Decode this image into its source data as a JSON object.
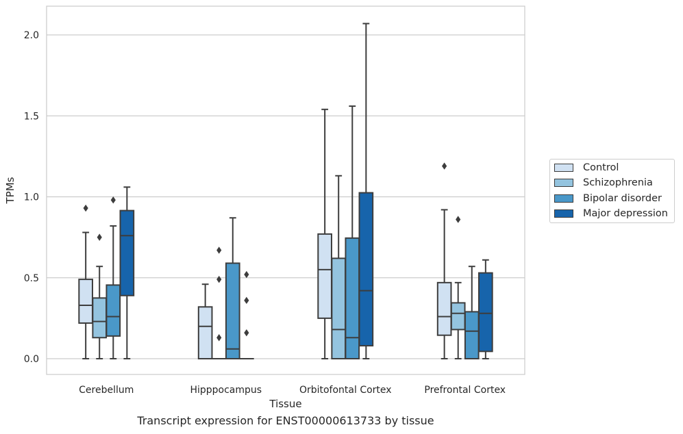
{
  "chart_data": {
    "type": "box",
    "title": "Transcript expression for ENST00000613733 by tissue",
    "xlabel": "Tissue",
    "ylabel": "TPMs",
    "ylim": [
      -0.1,
      2.18
    ],
    "yticks": [
      0.0,
      0.5,
      1.0,
      1.5,
      2.0
    ],
    "ytick_labels": [
      "0.0",
      "0.5",
      "1.0",
      "1.5",
      "2.0"
    ],
    "grid": "horizontal",
    "legend_placement": "right",
    "categories": [
      "Cerebellum",
      "Hipppocampus",
      "Orbitofontal Cortex",
      "Prefrontal Cortex"
    ],
    "series": [
      {
        "name": "Control",
        "color": "#d0e1f2",
        "boxes": [
          {
            "whislo": 0.0,
            "q1": 0.22,
            "med": 0.33,
            "q3": 0.49,
            "whishi": 0.78,
            "fliers": [
              0.93
            ]
          },
          {
            "whislo": 0.0,
            "q1": 0.0,
            "med": 0.2,
            "q3": 0.32,
            "whishi": 0.46,
            "fliers": []
          },
          {
            "whislo": 0.0,
            "q1": 0.25,
            "med": 0.55,
            "q3": 0.77,
            "whishi": 1.54,
            "fliers": []
          },
          {
            "whislo": 0.0,
            "q1": 0.145,
            "med": 0.26,
            "q3": 0.47,
            "whishi": 0.92,
            "fliers": [
              1.19
            ]
          }
        ]
      },
      {
        "name": "Schizophrenia",
        "color": "#94c4df",
        "boxes": [
          {
            "whislo": 0.0,
            "q1": 0.13,
            "med": 0.23,
            "q3": 0.375,
            "whishi": 0.57,
            "fliers": [
              0.75
            ]
          },
          {
            "whislo": 0.0,
            "q1": 0.0,
            "med": 0.0,
            "q3": 0.0,
            "whishi": 0.0,
            "fliers": [
              0.13,
              0.49,
              0.67
            ]
          },
          {
            "whislo": 0.0,
            "q1": 0.0,
            "med": 0.18,
            "q3": 0.62,
            "whishi": 1.13,
            "fliers": []
          },
          {
            "whislo": 0.0,
            "q1": 0.18,
            "med": 0.28,
            "q3": 0.345,
            "whishi": 0.47,
            "fliers": [
              0.86
            ]
          }
        ]
      },
      {
        "name": "Bipolar disorder",
        "color": "#4a98c9",
        "boxes": [
          {
            "whislo": 0.0,
            "q1": 0.14,
            "med": 0.26,
            "q3": 0.455,
            "whishi": 0.82,
            "fliers": [
              0.98
            ]
          },
          {
            "whislo": 0.0,
            "q1": 0.0,
            "med": 0.06,
            "q3": 0.59,
            "whishi": 0.87,
            "fliers": []
          },
          {
            "whislo": 0.0,
            "q1": 0.0,
            "med": 0.13,
            "q3": 0.745,
            "whishi": 1.56,
            "fliers": []
          },
          {
            "whislo": 0.0,
            "q1": 0.0,
            "med": 0.17,
            "q3": 0.29,
            "whishi": 0.57,
            "fliers": []
          }
        ]
      },
      {
        "name": "Major depression",
        "color": "#1764ab",
        "boxes": [
          {
            "whislo": 0.0,
            "q1": 0.39,
            "med": 0.76,
            "q3": 0.915,
            "whishi": 1.06,
            "fliers": []
          },
          {
            "whislo": 0.0,
            "q1": 0.0,
            "med": 0.0,
            "q3": 0.0,
            "whishi": 0.0,
            "fliers": [
              0.16,
              0.36,
              0.52
            ]
          },
          {
            "whislo": 0.0,
            "q1": 0.08,
            "med": 0.42,
            "q3": 1.025,
            "whishi": 2.07,
            "fliers": []
          },
          {
            "whislo": 0.0,
            "q1": 0.045,
            "med": 0.28,
            "q3": 0.53,
            "whishi": 0.61,
            "fliers": []
          }
        ]
      }
    ]
  }
}
